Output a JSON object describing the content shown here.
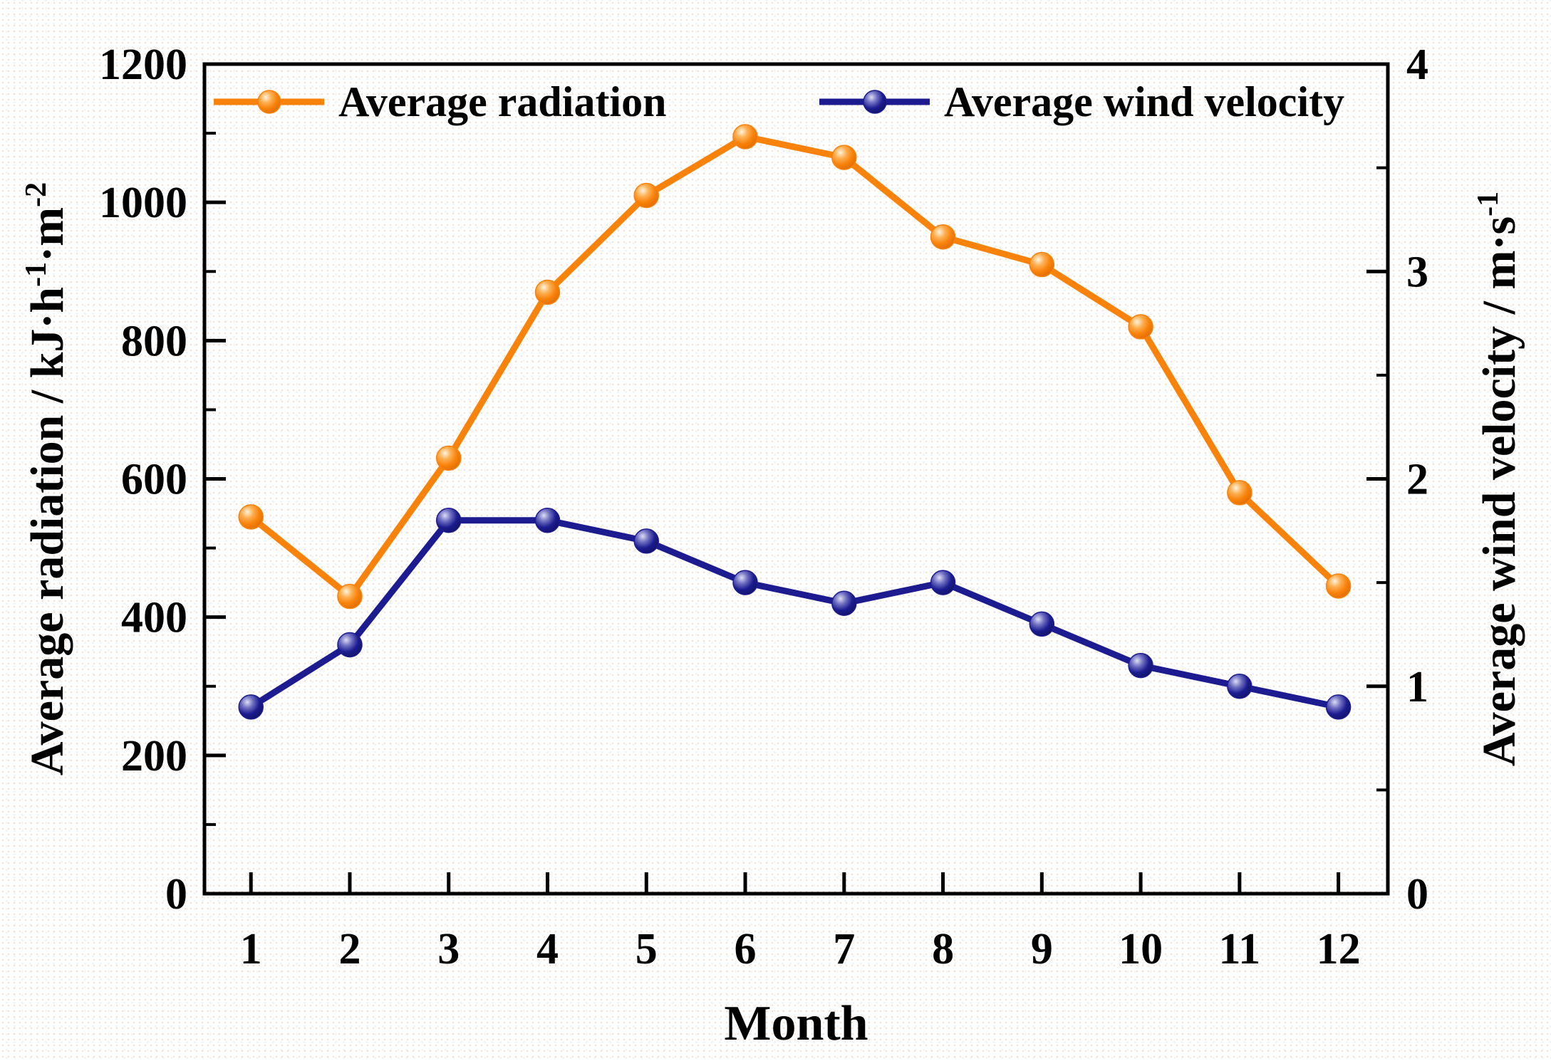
{
  "figure": {
    "kind": "scientific line chart, dual y-axis",
    "background": "#FFFFFF"
  },
  "colors": {
    "frame": "#000000",
    "text": "#000000",
    "radiation_orange": "#F8820A",
    "wind_blue": "#1C1C90"
  },
  "chart_data": {
    "type": "line",
    "title": "",
    "grid": false,
    "x": [
      1,
      2,
      3,
      4,
      5,
      6,
      7,
      8,
      9,
      10,
      11,
      12
    ],
    "x_axis": {
      "label": "Month",
      "ticks": [
        "1",
        "2",
        "3",
        "4",
        "5",
        "6",
        "7",
        "8",
        "9",
        "10",
        "11",
        "12"
      ],
      "range": [
        0.53,
        12.5
      ]
    },
    "left_axis": {
      "label_segments": [
        {
          "text": "Average radiation / kJ·h"
        },
        {
          "text": "-1",
          "sup": true
        },
        {
          "text": "·m"
        },
        {
          "text": "-2",
          "sup": true
        }
      ],
      "ticks": [
        0,
        200,
        400,
        600,
        800,
        1000,
        1200
      ],
      "minor_ticks": [
        100,
        300,
        500,
        700,
        900,
        1100
      ],
      "range": [
        0,
        1200
      ]
    },
    "right_axis": {
      "label_segments": [
        {
          "text": "Average wind velocity / m·s"
        },
        {
          "text": "-1",
          "sup": true
        }
      ],
      "ticks": [
        0,
        1,
        2,
        3,
        4
      ],
      "minor_ticks": [
        0.5,
        1.5,
        2.5,
        3.5
      ],
      "range": [
        0,
        4
      ]
    },
    "series": [
      {
        "name": "Average radiation",
        "axis": "left",
        "color": "#F8820A",
        "values": [
          545,
          430,
          630,
          870,
          1010,
          1095,
          1065,
          950,
          910,
          820,
          580,
          445
        ]
      },
      {
        "name": "Average wind velocity",
        "axis": "right",
        "color": "#1C1C90",
        "values": [
          0.9,
          1.2,
          1.8,
          1.8,
          1.7,
          1.5,
          1.4,
          1.5,
          1.3,
          1.1,
          1.0,
          0.9
        ]
      }
    ],
    "legend": {
      "position": "top-inside",
      "entries": [
        "Average radiation",
        "Average wind velocity"
      ]
    }
  }
}
